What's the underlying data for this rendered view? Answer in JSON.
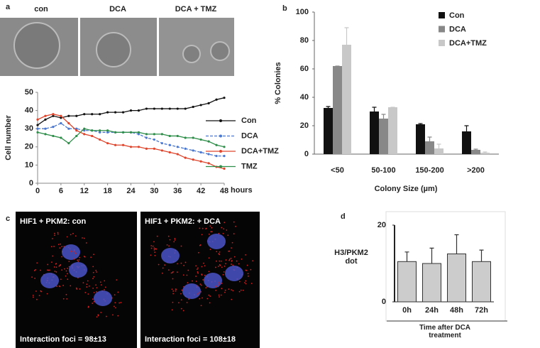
{
  "panel_labels": [
    "a",
    "b",
    "c",
    "d"
  ],
  "images_a": [
    "con",
    "DCA",
    "DCA + TMZ"
  ],
  "images_c": [
    {
      "title": "HIF1 + PKM2: con",
      "caption": "Interaction foci = 98±13"
    },
    {
      "title": "HIF1 + PKM2: + DCA",
      "caption": "Interaction foci = 108±18"
    }
  ],
  "chart_data": [
    {
      "type": "line",
      "xlabel": "hours",
      "ylabel": "Cell number",
      "x": [
        0,
        2,
        4,
        6,
        8,
        10,
        12,
        14,
        16,
        18,
        20,
        22,
        24,
        26,
        28,
        30,
        32,
        34,
        36,
        38,
        40,
        42,
        44,
        46,
        48
      ],
      "xlim": [
        0,
        48
      ],
      "xticks": [
        0,
        6,
        12,
        18,
        24,
        30,
        36,
        42,
        48
      ],
      "ylim": [
        0,
        50
      ],
      "yticks": [
        0,
        10,
        20,
        30,
        40,
        50
      ],
      "series": [
        {
          "name": "Con",
          "color": "#111111",
          "linestyle": "solid",
          "values": [
            32,
            35,
            37,
            36,
            37,
            37,
            38,
            38,
            38,
            39,
            39,
            39,
            40,
            40,
            41,
            41,
            41,
            41,
            41,
            41,
            42,
            43,
            44,
            46,
            47
          ]
        },
        {
          "name": "DCA",
          "color": "#4a78d0",
          "linestyle": "dashed",
          "values": [
            30,
            30,
            31,
            33,
            30,
            30,
            29,
            29,
            28,
            28,
            28,
            28,
            28,
            27,
            25,
            24,
            22,
            21,
            20,
            19,
            18,
            17,
            16,
            15,
            15
          ]
        },
        {
          "name": "DCA+TMZ",
          "color": "#e0452c",
          "linestyle": "solid",
          "values": [
            35,
            37,
            38,
            37,
            33,
            29,
            27,
            26,
            24,
            22,
            21,
            21,
            20,
            20,
            19,
            19,
            18,
            17,
            16,
            14,
            13,
            12,
            11,
            9,
            8
          ]
        },
        {
          "name": "TMZ",
          "color": "#2f8f4a",
          "linestyle": "solid",
          "values": [
            28,
            27,
            26,
            25,
            22,
            26,
            30,
            29,
            29,
            29,
            28,
            28,
            28,
            28,
            27,
            27,
            27,
            26,
            26,
            25,
            25,
            24,
            23,
            21,
            20
          ]
        }
      ]
    },
    {
      "type": "bar",
      "xlabel": "Colony Size (µm)",
      "ylabel": "% Colonies",
      "categories": [
        "<50",
        "50-100",
        "150-200",
        ">200"
      ],
      "ylim": [
        0,
        100
      ],
      "yticks": [
        0,
        20,
        40,
        60,
        80,
        100
      ],
      "legend": "top-right",
      "series": [
        {
          "name": "Con",
          "color": "#111111",
          "values": [
            32.5,
            30,
            21,
            16
          ],
          "errors": [
            1,
            3,
            0.5,
            4
          ]
        },
        {
          "name": "DCA",
          "color": "#888888",
          "values": [
            62,
            25,
            9,
            3
          ],
          "errors": [
            0,
            3,
            3,
            0.5
          ]
        },
        {
          "name": "DCA+TMZ",
          "color": "#c8c8c8",
          "values": [
            77,
            33,
            4,
            1
          ],
          "errors": [
            12,
            0,
            3,
            0.5
          ]
        }
      ]
    },
    {
      "type": "bar",
      "xlabel": "Time after DCA treatment",
      "ylabel": "H3/PKM2 dot",
      "categories": [
        "0h",
        "24h",
        "48h",
        "72h"
      ],
      "ylim": [
        0,
        20
      ],
      "yticks": [
        0,
        20
      ],
      "series": [
        {
          "color": "#cccccc",
          "values": [
            10.5,
            10,
            12.5,
            10.5
          ],
          "errors": [
            2.5,
            4,
            5,
            3
          ]
        }
      ]
    }
  ]
}
